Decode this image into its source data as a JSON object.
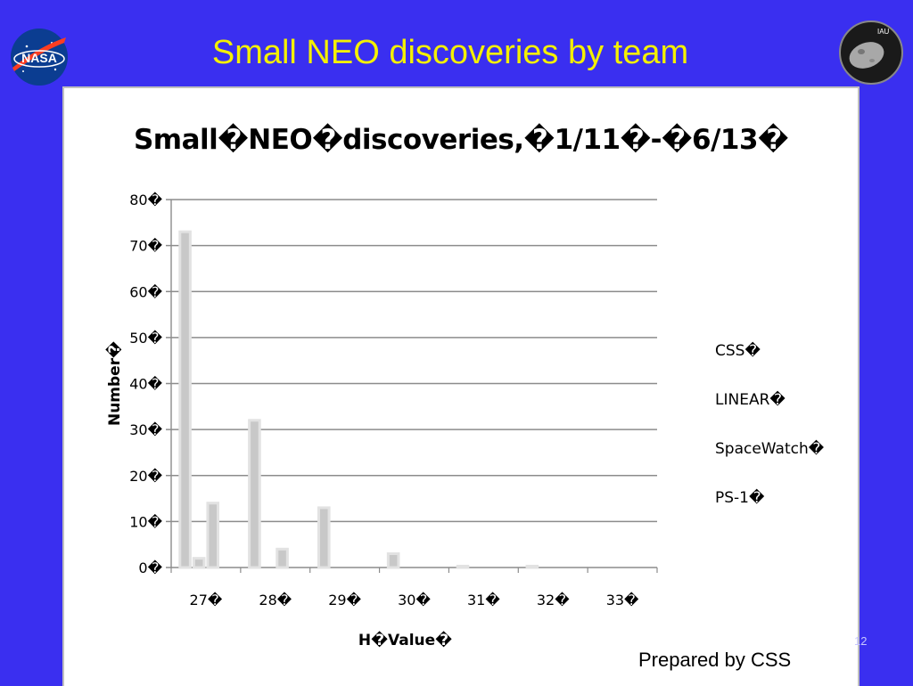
{
  "slide": {
    "title": "Small NEO discoveries by team",
    "footer": "Prepared by CSS",
    "page_number": "12",
    "logos": {
      "left": "NASA",
      "right": "IAU"
    }
  },
  "colors": {
    "background": "#3a2ff0",
    "title": "#f4f000",
    "bar": "#c8c8c8",
    "grid": "#8c8c8c"
  },
  "chart_data": {
    "type": "bar",
    "title": "Small�NEO�discoveries,�1/11�-�6/13�",
    "xlabel": "H�Value�",
    "ylabel": "Number�",
    "categories": [
      "27�",
      "28�",
      "29�",
      "30�",
      "31�",
      "32�",
      "33�"
    ],
    "yticks": [
      "0�",
      "10�",
      "20�",
      "30�",
      "40�",
      "50�",
      "60�",
      "70�",
      "80�"
    ],
    "ylim": [
      0,
      80
    ],
    "grid": true,
    "legend_position": "right",
    "series": [
      {
        "name": "CSS�",
        "values": [
          73,
          32,
          13,
          3,
          0.3,
          0.3,
          0
        ]
      },
      {
        "name": "LINEAR�",
        "values": [
          2,
          0,
          0,
          0,
          0,
          0,
          0
        ]
      },
      {
        "name": "SpaceWatch�",
        "values": [
          14,
          4,
          0,
          0,
          0,
          0,
          0
        ]
      },
      {
        "name": "PS-1�",
        "values": [
          0,
          0,
          0,
          0,
          0,
          0,
          0
        ]
      }
    ]
  }
}
